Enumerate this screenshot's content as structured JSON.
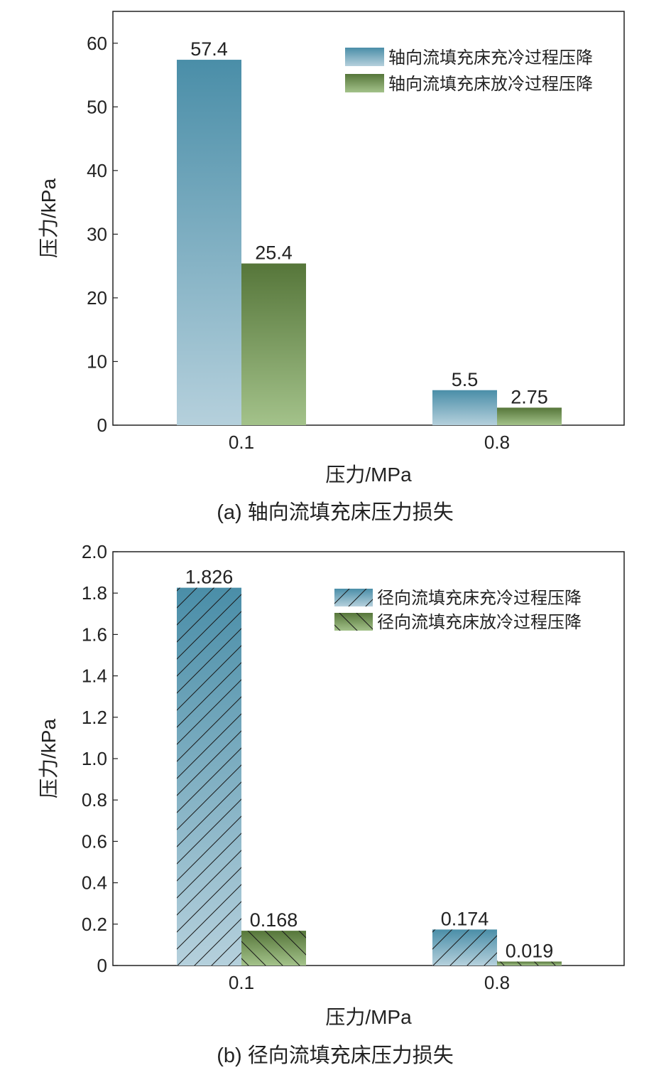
{
  "colors": {
    "charge_top": "#4a8ea8",
    "charge_bottom": "#b5d0dc",
    "discharge_top": "#56763a",
    "discharge_bottom": "#a3c28a",
    "axis": "#222222"
  },
  "chart_data": [
    {
      "type": "bar",
      "caption": "(a) 轴向流填充床压力损失",
      "xlabel": "压力/MPa",
      "ylabel": "压力/kPa",
      "categories": [
        "0.1",
        "0.8"
      ],
      "ylim": [
        0,
        65
      ],
      "yticks": [
        0,
        10,
        20,
        30,
        40,
        50,
        60
      ],
      "ytick_labels": [
        "0",
        "10",
        "20",
        "30",
        "40",
        "50",
        "60"
      ],
      "hatched": false,
      "legend_position": "top-right",
      "series": [
        {
          "name": "轴向流填充床充冷过程压降",
          "values": [
            57.4,
            5.5
          ],
          "labels": [
            "57.4",
            "5.5"
          ],
          "style": "charge"
        },
        {
          "name": "轴向流填充床放冷过程压降",
          "values": [
            25.4,
            2.75
          ],
          "labels": [
            "25.4",
            "2.75"
          ],
          "style": "discharge"
        }
      ]
    },
    {
      "type": "bar",
      "caption": "(b) 径向流填充床压力损失",
      "xlabel": "压力/MPa",
      "ylabel": "压力/kPa",
      "categories": [
        "0.1",
        "0.8"
      ],
      "ylim": [
        0,
        2.0
      ],
      "yticks": [
        0,
        0.2,
        0.4,
        0.6,
        0.8,
        1.0,
        1.2,
        1.4,
        1.6,
        1.8,
        2.0
      ],
      "ytick_labels": [
        "0",
        "0.2",
        "0.4",
        "0.6",
        "0.8",
        "1.0",
        "1.2",
        "1.4",
        "1.6",
        "1.8",
        "2.0"
      ],
      "hatched": true,
      "legend_position": "top-right",
      "series": [
        {
          "name": "径向流填充床充冷过程压降",
          "values": [
            1.826,
            0.174
          ],
          "labels": [
            "1.826",
            "0.174"
          ],
          "style": "charge"
        },
        {
          "name": "径向流填充床放冷过程压降",
          "values": [
            0.168,
            0.019
          ],
          "labels": [
            "0.168",
            "0.019"
          ],
          "style": "discharge"
        }
      ]
    }
  ]
}
